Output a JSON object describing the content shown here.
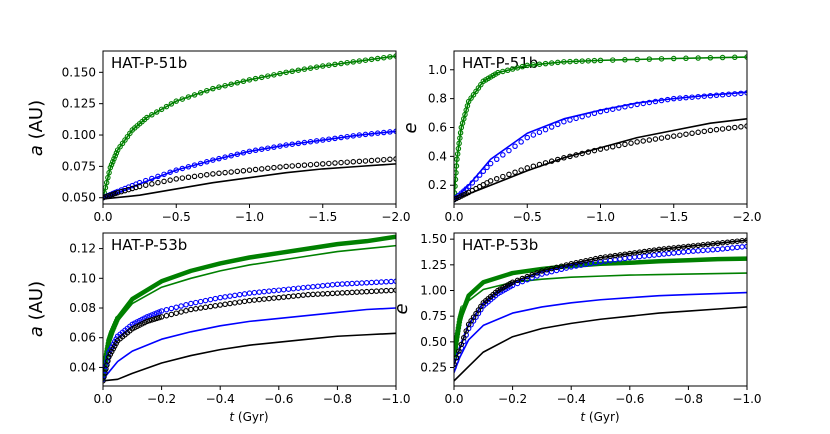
{
  "figure": {
    "title": ""
  },
  "chart_data": [
    {
      "id": "p1",
      "type": "line",
      "panel_label": "HAT-P-51b",
      "ylabel_var": "a",
      "ylabel_unit": " (AU)",
      "xlabel_var": "",
      "xlabel_unit": "",
      "xlim": [
        0,
        -2.0
      ],
      "ylim": [
        0.045,
        0.167
      ],
      "xticks": [
        0,
        -0.5,
        -1.0,
        -1.5,
        -2.0
      ],
      "xtick_labels": [
        "0.0",
        "−0.5",
        "−1.0",
        "−1.5",
        "−2.0"
      ],
      "yticks": [
        0.05,
        0.075,
        0.1,
        0.125,
        0.15
      ],
      "ytick_labels": [
        "0.050",
        "0.075",
        "0.100",
        "0.125",
        "0.150"
      ],
      "series": [
        {
          "name": "green-line",
          "color": "#008000",
          "style": "line",
          "x": [
            0,
            -0.05,
            -0.1,
            -0.2,
            -0.3,
            -0.5,
            -0.75,
            -1.0,
            -1.25,
            -1.5,
            -1.75,
            -2.0
          ],
          "y": [
            0.05,
            0.074,
            0.088,
            0.104,
            0.114,
            0.127,
            0.137,
            0.144,
            0.15,
            0.155,
            0.159,
            0.163
          ]
        },
        {
          "name": "green-markers",
          "color": "#008000",
          "style": "markers",
          "x": [
            0,
            -0.05,
            -0.1,
            -0.2,
            -0.3,
            -0.5,
            -0.75,
            -1.0,
            -1.25,
            -1.5,
            -1.75,
            -2.0
          ],
          "y": [
            0.05,
            0.074,
            0.088,
            0.104,
            0.114,
            0.127,
            0.137,
            0.144,
            0.15,
            0.155,
            0.159,
            0.163
          ]
        },
        {
          "name": "blue-line",
          "color": "#0000ff",
          "style": "line",
          "x": [
            0,
            -0.1,
            -0.25,
            -0.5,
            -0.75,
            -1.0,
            -1.25,
            -1.5,
            -1.75,
            -2.0
          ],
          "y": [
            0.05,
            0.054,
            0.061,
            0.072,
            0.08,
            0.087,
            0.092,
            0.096,
            0.1,
            0.103
          ]
        },
        {
          "name": "blue-markers",
          "color": "#0000ff",
          "style": "markers",
          "x": [
            0,
            -0.1,
            -0.25,
            -0.5,
            -0.75,
            -1.0,
            -1.25,
            -1.5,
            -1.75,
            -2.0
          ],
          "y": [
            0.05,
            0.055,
            0.062,
            0.072,
            0.08,
            0.087,
            0.092,
            0.096,
            0.1,
            0.103
          ]
        },
        {
          "name": "black-line",
          "color": "#000000",
          "style": "line",
          "x": [
            0,
            -0.25,
            -0.5,
            -0.75,
            -1.0,
            -1.25,
            -1.5,
            -1.75,
            -2.0
          ],
          "y": [
            0.049,
            0.052,
            0.057,
            0.062,
            0.066,
            0.07,
            0.073,
            0.075,
            0.077
          ]
        },
        {
          "name": "black-markers",
          "color": "#000000",
          "style": "markers",
          "x": [
            0,
            -0.1,
            -0.25,
            -0.5,
            -0.75,
            -1.0,
            -1.25,
            -1.5,
            -1.75,
            -2.0
          ],
          "y": [
            0.05,
            0.054,
            0.059,
            0.065,
            0.069,
            0.072,
            0.075,
            0.077,
            0.079,
            0.081
          ]
        }
      ]
    },
    {
      "id": "p2",
      "type": "line",
      "panel_label": "HAT-P-51b",
      "ylabel_var": "e",
      "ylabel_unit": "",
      "xlabel_var": "",
      "xlabel_unit": "",
      "xlim": [
        0,
        -2.0
      ],
      "ylim": [
        0.07,
        1.13
      ],
      "xticks": [
        0,
        -0.5,
        -1.0,
        -1.5,
        -2.0
      ],
      "xtick_labels": [
        "0.0",
        "−0.5",
        "−1.0",
        "−1.5",
        "−2.0"
      ],
      "yticks": [
        0.2,
        0.4,
        0.6,
        0.8,
        1.0
      ],
      "ytick_labels": [
        "0.2",
        "0.4",
        "0.6",
        "0.8",
        "1.0"
      ],
      "series": [
        {
          "name": "green-line",
          "color": "#008000",
          "style": "line",
          "x": [
            0,
            -0.02,
            -0.05,
            -0.1,
            -0.2,
            -0.3,
            -0.5,
            -0.75,
            -1.0,
            -1.5,
            -2.0
          ],
          "y": [
            0.1,
            0.38,
            0.6,
            0.78,
            0.92,
            0.98,
            1.03,
            1.055,
            1.065,
            1.078,
            1.088
          ]
        },
        {
          "name": "green-markers",
          "color": "#008000",
          "style": "markers",
          "x": [
            0,
            -0.02,
            -0.05,
            -0.1,
            -0.2,
            -0.3,
            -0.5,
            -0.75,
            -1.0,
            -1.5,
            -2.0
          ],
          "y": [
            0.1,
            0.38,
            0.6,
            0.78,
            0.92,
            0.98,
            1.03,
            1.055,
            1.065,
            1.078,
            1.088
          ]
        },
        {
          "name": "blue-line",
          "color": "#0000ff",
          "style": "line",
          "x": [
            0,
            -0.1,
            -0.25,
            -0.5,
            -0.75,
            -1.0,
            -1.25,
            -1.5,
            -1.75,
            -2.0
          ],
          "y": [
            0.1,
            0.2,
            0.38,
            0.56,
            0.66,
            0.72,
            0.77,
            0.8,
            0.825,
            0.845
          ]
        },
        {
          "name": "blue-markers",
          "color": "#0000ff",
          "style": "markers",
          "x": [
            0,
            -0.1,
            -0.25,
            -0.5,
            -0.75,
            -1.0,
            -1.25,
            -1.5,
            -1.75,
            -2.0
          ],
          "y": [
            0.1,
            0.19,
            0.35,
            0.53,
            0.64,
            0.71,
            0.76,
            0.8,
            0.82,
            0.84
          ]
        },
        {
          "name": "black-line",
          "color": "#000000",
          "style": "line",
          "x": [
            0,
            -0.25,
            -0.5,
            -0.75,
            -1.0,
            -1.25,
            -1.5,
            -1.75,
            -2.0
          ],
          "y": [
            0.1,
            0.2,
            0.3,
            0.39,
            0.46,
            0.53,
            0.58,
            0.63,
            0.66
          ]
        },
        {
          "name": "black-markers",
          "color": "#000000",
          "style": "markers",
          "x": [
            0,
            -0.1,
            -0.25,
            -0.5,
            -0.75,
            -1.0,
            -1.25,
            -1.5,
            -1.75,
            -2.0
          ],
          "y": [
            0.1,
            0.15,
            0.23,
            0.32,
            0.39,
            0.45,
            0.5,
            0.54,
            0.58,
            0.61
          ]
        }
      ]
    },
    {
      "id": "p3",
      "type": "line",
      "panel_label": "HAT-P-53b",
      "ylabel_var": "a",
      "ylabel_unit": " (AU)",
      "xlabel_var": "t",
      "xlabel_unit": " (Gyr)",
      "xlim": [
        0,
        -1.0
      ],
      "ylim": [
        0.0275,
        0.1305
      ],
      "xticks": [
        0,
        -0.2,
        -0.4,
        -0.6,
        -0.8,
        -1.0
      ],
      "xtick_labels": [
        "0.0",
        "−0.2",
        "−0.4",
        "−0.6",
        "−0.8",
        "−1.0"
      ],
      "yticks": [
        0.04,
        0.06,
        0.08,
        0.1,
        0.12
      ],
      "ytick_labels": [
        "0.04",
        "0.06",
        "0.08",
        "0.10",
        "0.12"
      ],
      "series": [
        {
          "name": "green-thick-line",
          "color": "#008000",
          "style": "thick-line",
          "x": [
            0,
            -0.02,
            -0.05,
            -0.1,
            -0.2,
            -0.3,
            -0.4,
            -0.5,
            -0.6,
            -0.7,
            -0.8,
            -0.9,
            -1.0
          ],
          "y": [
            0.033,
            0.058,
            0.073,
            0.086,
            0.098,
            0.105,
            0.11,
            0.114,
            0.117,
            0.12,
            0.123,
            0.125,
            0.128
          ]
        },
        {
          "name": "green-line",
          "color": "#008000",
          "style": "line",
          "x": [
            0,
            -0.02,
            -0.05,
            -0.1,
            -0.2,
            -0.3,
            -0.4,
            -0.5,
            -0.6,
            -0.7,
            -0.8,
            -0.9,
            -1.0
          ],
          "y": [
            0.033,
            0.057,
            0.071,
            0.083,
            0.094,
            0.1,
            0.105,
            0.109,
            0.112,
            0.115,
            0.118,
            0.12,
            0.122
          ]
        },
        {
          "name": "green-markers",
          "color": "#008000",
          "style": "markers",
          "x": [
            0,
            -0.01,
            -0.02,
            -0.03,
            -0.05
          ],
          "y": [
            0.033,
            0.047,
            0.058,
            0.064,
            0.073
          ]
        },
        {
          "name": "blue-line",
          "color": "#0000ff",
          "style": "line",
          "x": [
            0,
            -0.05,
            -0.1,
            -0.2,
            -0.3,
            -0.4,
            -0.5,
            -0.6,
            -0.7,
            -0.8,
            -0.9,
            -1.0
          ],
          "y": [
            0.032,
            0.044,
            0.051,
            0.059,
            0.064,
            0.068,
            0.071,
            0.073,
            0.075,
            0.077,
            0.079,
            0.08
          ]
        },
        {
          "name": "blue-markers",
          "color": "#0000ff",
          "style": "markers",
          "x": [
            0,
            -0.02,
            -0.05,
            -0.1,
            -0.15,
            -0.2,
            -0.3,
            -0.4,
            -0.5,
            -0.6,
            -0.7,
            -0.8,
            -0.9,
            -1.0
          ],
          "y": [
            0.032,
            0.05,
            0.061,
            0.069,
            0.074,
            0.078,
            0.083,
            0.087,
            0.09,
            0.092,
            0.094,
            0.096,
            0.097,
            0.098
          ]
        },
        {
          "name": "black-line",
          "color": "#000000",
          "style": "line",
          "x": [
            0,
            -0.05,
            -0.1,
            -0.2,
            -0.3,
            -0.4,
            -0.5,
            -0.6,
            -0.7,
            -0.8,
            -0.9,
            -1.0
          ],
          "y": [
            0.031,
            0.032,
            0.036,
            0.043,
            0.048,
            0.052,
            0.055,
            0.057,
            0.059,
            0.061,
            0.062,
            0.063
          ]
        },
        {
          "name": "black-markers",
          "color": "#000000",
          "style": "markers",
          "x": [
            0,
            -0.02,
            -0.05,
            -0.1,
            -0.15,
            -0.2,
            -0.3,
            -0.4,
            -0.5,
            -0.6,
            -0.7,
            -0.8,
            -0.9,
            -1.0
          ],
          "y": [
            0.031,
            0.047,
            0.058,
            0.066,
            0.071,
            0.074,
            0.079,
            0.082,
            0.085,
            0.087,
            0.089,
            0.09,
            0.091,
            0.092
          ]
        }
      ]
    },
    {
      "id": "p4",
      "type": "line",
      "panel_label": "HAT-P-53b",
      "ylabel_var": "e",
      "ylabel_unit": "",
      "xlabel_var": "t",
      "xlabel_unit": " (Gyr)",
      "xlim": [
        0,
        -1.0
      ],
      "ylim": [
        0.07,
        1.56
      ],
      "xticks": [
        0,
        -0.2,
        -0.4,
        -0.6,
        -0.8,
        -1.0
      ],
      "xtick_labels": [
        "0.0",
        "−0.2",
        "−0.4",
        "−0.6",
        "−0.8",
        "−1.0"
      ],
      "yticks": [
        0.25,
        0.5,
        0.75,
        1.0,
        1.25,
        1.5
      ],
      "ytick_labels": [
        "0.25",
        "0.50",
        "0.75",
        "1.00",
        "1.25",
        "1.50"
      ],
      "series": [
        {
          "name": "green-thick-line",
          "color": "#008000",
          "style": "thick-line",
          "x": [
            0,
            -0.02,
            -0.05,
            -0.1,
            -0.2,
            -0.3,
            -0.4,
            -0.5,
            -0.6,
            -0.7,
            -0.8,
            -0.9,
            -1.0
          ],
          "y": [
            0.35,
            0.72,
            0.95,
            1.08,
            1.17,
            1.21,
            1.24,
            1.26,
            1.27,
            1.285,
            1.295,
            1.305,
            1.31
          ]
        },
        {
          "name": "green-line",
          "color": "#008000",
          "style": "line",
          "x": [
            0,
            -0.02,
            -0.05,
            -0.1,
            -0.2,
            -0.3,
            -0.4,
            -0.5,
            -0.6,
            -0.7,
            -0.8,
            -0.9,
            -1.0
          ],
          "y": [
            0.35,
            0.7,
            0.9,
            1.01,
            1.08,
            1.11,
            1.13,
            1.14,
            1.15,
            1.155,
            1.16,
            1.165,
            1.17
          ]
        },
        {
          "name": "green-markers",
          "color": "#008000",
          "style": "markers",
          "x": [
            0,
            -0.01,
            -0.02,
            -0.03
          ],
          "y": [
            0.35,
            0.55,
            0.72,
            0.83
          ]
        },
        {
          "name": "blue-line",
          "color": "#0000ff",
          "style": "line",
          "x": [
            0,
            -0.02,
            -0.05,
            -0.1,
            -0.2,
            -0.3,
            -0.4,
            -0.5,
            -0.6,
            -0.7,
            -0.8,
            -0.9,
            -1.0
          ],
          "y": [
            0.2,
            0.35,
            0.52,
            0.66,
            0.78,
            0.84,
            0.88,
            0.91,
            0.93,
            0.95,
            0.96,
            0.97,
            0.98
          ]
        },
        {
          "name": "blue-markers",
          "color": "#0000ff",
          "style": "markers",
          "x": [
            0,
            -0.05,
            -0.1,
            -0.15,
            -0.2,
            -0.3,
            -0.4,
            -0.5,
            -0.6,
            -0.7,
            -0.8,
            -0.9,
            -1.0
          ],
          "y": [
            0.25,
            0.63,
            0.85,
            0.97,
            1.05,
            1.16,
            1.23,
            1.28,
            1.32,
            1.35,
            1.38,
            1.4,
            1.43
          ]
        },
        {
          "name": "black-line",
          "color": "#000000",
          "style": "line",
          "x": [
            0,
            -0.05,
            -0.1,
            -0.2,
            -0.3,
            -0.4,
            -0.5,
            -0.6,
            -0.7,
            -0.8,
            -0.9,
            -1.0
          ],
          "y": [
            0.12,
            0.26,
            0.4,
            0.55,
            0.63,
            0.68,
            0.72,
            0.75,
            0.78,
            0.8,
            0.82,
            0.84
          ]
        },
        {
          "name": "black-main-line",
          "color": "#000000",
          "style": "line",
          "x": [
            0,
            -0.05,
            -0.1,
            -0.15,
            -0.2,
            -0.3,
            -0.4,
            -0.5,
            -0.6,
            -0.7,
            -0.8,
            -0.9,
            -1.0
          ],
          "y": [
            0.28,
            0.67,
            0.88,
            1.0,
            1.08,
            1.19,
            1.26,
            1.32,
            1.36,
            1.4,
            1.43,
            1.46,
            1.49
          ]
        },
        {
          "name": "black-markers",
          "color": "#000000",
          "style": "markers",
          "x": [
            0,
            -0.05,
            -0.1,
            -0.15,
            -0.2,
            -0.3,
            -0.4,
            -0.5,
            -0.6,
            -0.7,
            -0.8,
            -0.9,
            -1.0
          ],
          "y": [
            0.28,
            0.67,
            0.88,
            1.0,
            1.08,
            1.19,
            1.26,
            1.32,
            1.36,
            1.4,
            1.43,
            1.46,
            1.49
          ]
        }
      ]
    }
  ]
}
